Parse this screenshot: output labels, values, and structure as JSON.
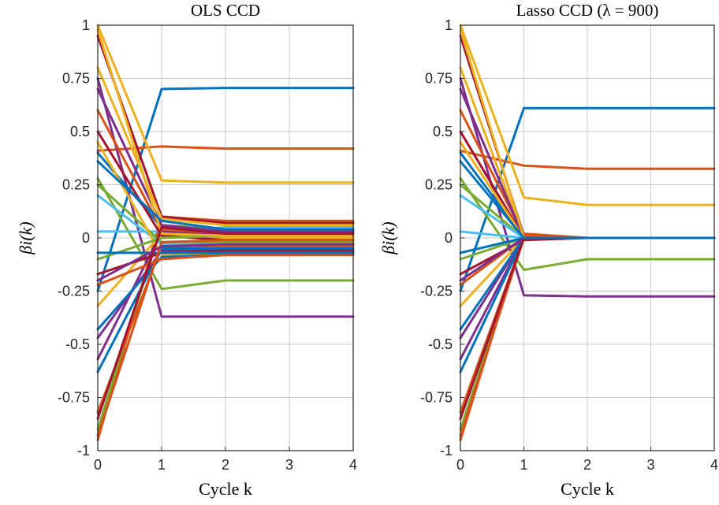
{
  "figure": {
    "background": "#ffffff"
  },
  "chart_data": [
    {
      "type": "line",
      "title": "OLS CCD",
      "xlabel": "Cycle k",
      "ylabel": "βi(k)",
      "xlim": [
        0,
        4
      ],
      "ylim": [
        -1,
        1
      ],
      "xticks": [
        0,
        1,
        2,
        3,
        4
      ],
      "xtick_labels": [
        "0",
        "1",
        "2",
        "3",
        "4"
      ],
      "yticks": [
        -1,
        -0.75,
        -0.5,
        -0.25,
        0,
        0.25,
        0.5,
        0.75,
        1
      ],
      "ytick_labels": [
        "-1",
        "-0.75",
        "-0.5",
        "-0.25",
        "0",
        "0.25",
        "0.5",
        "0.75",
        "1"
      ],
      "grid": true,
      "x": [
        0,
        1,
        2,
        3,
        4
      ],
      "series": [
        {
          "color": "#0072bd",
          "values": [
            -0.25,
            0.7,
            0.705,
            0.705,
            0.705
          ]
        },
        {
          "color": "#d95319",
          "values": [
            0.41,
            0.43,
            0.42,
            0.42,
            0.42
          ]
        },
        {
          "color": "#edb120",
          "values": [
            1.0,
            0.27,
            0.26,
            0.26,
            0.26
          ]
        },
        {
          "color": "#77ac30",
          "values": [
            0.28,
            -0.24,
            -0.2,
            -0.2,
            -0.2
          ]
        },
        {
          "color": "#7e2f8e",
          "values": [
            0.75,
            -0.37,
            -0.37,
            -0.37,
            -0.37
          ]
        },
        {
          "color": "#d95319",
          "values": [
            -0.95,
            0.1,
            0.08,
            0.08,
            0.08
          ]
        },
        {
          "color": "#a2142f",
          "values": [
            0.95,
            0.1,
            0.07,
            0.07,
            0.07
          ]
        },
        {
          "color": "#edb120",
          "values": [
            0.8,
            0.09,
            0.06,
            0.06,
            0.06
          ]
        },
        {
          "color": "#4dbeee",
          "values": [
            0.03,
            0.03,
            0.05,
            0.05,
            0.05
          ]
        },
        {
          "color": "#77ac30",
          "values": [
            -0.9,
            0.06,
            0.04,
            0.04,
            0.04
          ]
        },
        {
          "color": "#0072bd",
          "values": [
            0.4,
            0.05,
            0.03,
            0.03,
            0.03
          ]
        },
        {
          "color": "#d95319",
          "values": [
            0.6,
            0.04,
            0.02,
            0.02,
            0.02
          ]
        },
        {
          "color": "#7e2f8e",
          "values": [
            -0.57,
            0.03,
            0.01,
            0.01,
            0.01
          ]
        },
        {
          "color": "#edb120",
          "values": [
            -0.32,
            0.02,
            0.0,
            0.0,
            0.0
          ]
        },
        {
          "color": "#a2142f",
          "values": [
            0.5,
            0.01,
            -0.01,
            -0.01,
            -0.01
          ]
        },
        {
          "color": "#77ac30",
          "values": [
            0.25,
            -0.02,
            -0.02,
            -0.02,
            -0.02
          ]
        },
        {
          "color": "#4dbeee",
          "values": [
            0.2,
            -0.03,
            -0.03,
            -0.03,
            -0.03
          ]
        },
        {
          "color": "#d95319",
          "values": [
            -0.82,
            -0.04,
            -0.04,
            -0.04,
            -0.04
          ]
        },
        {
          "color": "#0072bd",
          "values": [
            -0.63,
            -0.05,
            -0.05,
            -0.05,
            -0.05
          ]
        },
        {
          "color": "#7e2f8e",
          "values": [
            -0.47,
            -0.06,
            -0.06,
            -0.06,
            -0.06
          ]
        },
        {
          "color": "#a2142f",
          "values": [
            -0.17,
            -0.07,
            -0.06,
            -0.06,
            -0.06
          ]
        },
        {
          "color": "#edb120",
          "values": [
            0.45,
            -0.08,
            -0.07,
            -0.07,
            -0.07
          ]
        },
        {
          "color": "#0072bd",
          "values": [
            -0.43,
            -0.09,
            -0.08,
            -0.08,
            -0.08
          ]
        },
        {
          "color": "#d95319",
          "values": [
            -0.22,
            -0.1,
            -0.08,
            -0.08,
            -0.08
          ]
        },
        {
          "color": "#7e2f8e",
          "values": [
            0.7,
            0.06,
            0.03,
            0.03,
            0.03
          ]
        },
        {
          "color": "#77ac30",
          "values": [
            -0.1,
            0.0,
            0.01,
            0.01,
            0.01
          ]
        },
        {
          "color": "#0072bd",
          "values": [
            -0.07,
            -0.07,
            -0.07,
            -0.07,
            -0.07
          ]
        },
        {
          "color": "#d95319",
          "values": [
            -0.93,
            -0.02,
            -0.01,
            -0.01,
            -0.01
          ]
        },
        {
          "color": "#edb120",
          "values": [
            0.98,
            0.02,
            0.01,
            0.01,
            0.01
          ]
        },
        {
          "color": "#7e2f8e",
          "values": [
            -0.2,
            -0.04,
            -0.03,
            -0.03,
            -0.03
          ]
        },
        {
          "color": "#a2142f",
          "values": [
            -0.85,
            0.05,
            0.02,
            0.02,
            0.02
          ]
        },
        {
          "color": "#0072bd",
          "values": [
            0.36,
            0.08,
            0.04,
            0.04,
            0.04
          ]
        }
      ]
    },
    {
      "type": "line",
      "title": "Lasso CCD (λ = 900)",
      "xlabel": "Cycle k",
      "ylabel": "βi(k)",
      "xlim": [
        0,
        4
      ],
      "ylim": [
        -1,
        1
      ],
      "xticks": [
        0,
        1,
        2,
        3,
        4
      ],
      "xtick_labels": [
        "0",
        "1",
        "2",
        "3",
        "4"
      ],
      "yticks": [
        -1,
        -0.75,
        -0.5,
        -0.25,
        0,
        0.25,
        0.5,
        0.75,
        1
      ],
      "ytick_labels": [
        "-1",
        "-0.75",
        "-0.5",
        "-0.25",
        "0",
        "0.25",
        "0.5",
        "0.75",
        "1"
      ],
      "grid": true,
      "x": [
        0,
        1,
        2,
        3,
        4
      ],
      "series": [
        {
          "color": "#0072bd",
          "values": [
            -0.25,
            0.61,
            0.61,
            0.61,
            0.61
          ]
        },
        {
          "color": "#d95319",
          "values": [
            0.41,
            0.34,
            0.325,
            0.325,
            0.325
          ]
        },
        {
          "color": "#edb120",
          "values": [
            1.0,
            0.19,
            0.155,
            0.155,
            0.155
          ]
        },
        {
          "color": "#77ac30",
          "values": [
            0.28,
            -0.15,
            -0.1,
            -0.1,
            -0.1
          ]
        },
        {
          "color": "#7e2f8e",
          "values": [
            0.75,
            -0.27,
            -0.275,
            -0.275,
            -0.275
          ]
        },
        {
          "color": "#d95319",
          "values": [
            -0.95,
            0.02,
            0.0,
            0.0,
            0.0
          ]
        },
        {
          "color": "#a2142f",
          "values": [
            0.95,
            0.01,
            0.0,
            0.0,
            0.0
          ]
        },
        {
          "color": "#edb120",
          "values": [
            0.8,
            0.0,
            0.0,
            0.0,
            0.0
          ]
        },
        {
          "color": "#4dbeee",
          "values": [
            0.03,
            0.0,
            0.0,
            0.0,
            0.0
          ]
        },
        {
          "color": "#77ac30",
          "values": [
            -0.9,
            0.0,
            0.0,
            0.0,
            0.0
          ]
        },
        {
          "color": "#0072bd",
          "values": [
            0.4,
            0.0,
            0.0,
            0.0,
            0.0
          ]
        },
        {
          "color": "#d95319",
          "values": [
            0.6,
            0.01,
            0.0,
            0.0,
            0.0
          ]
        },
        {
          "color": "#7e2f8e",
          "values": [
            -0.57,
            0.0,
            0.0,
            0.0,
            0.0
          ]
        },
        {
          "color": "#edb120",
          "values": [
            -0.32,
            0.0,
            0.0,
            0.0,
            0.0
          ]
        },
        {
          "color": "#a2142f",
          "values": [
            0.5,
            0.0,
            0.0,
            0.0,
            0.0
          ]
        },
        {
          "color": "#77ac30",
          "values": [
            0.25,
            0.0,
            0.0,
            0.0,
            0.0
          ]
        },
        {
          "color": "#4dbeee",
          "values": [
            0.2,
            0.0,
            0.0,
            0.0,
            0.0
          ]
        },
        {
          "color": "#d95319",
          "values": [
            -0.82,
            0.0,
            0.0,
            0.0,
            0.0
          ]
        },
        {
          "color": "#0072bd",
          "values": [
            -0.63,
            0.0,
            0.0,
            0.0,
            0.0
          ]
        },
        {
          "color": "#7e2f8e",
          "values": [
            -0.47,
            0.0,
            0.0,
            0.0,
            0.0
          ]
        },
        {
          "color": "#a2142f",
          "values": [
            -0.17,
            -0.01,
            0.0,
            0.0,
            0.0
          ]
        },
        {
          "color": "#edb120",
          "values": [
            0.45,
            0.0,
            0.0,
            0.0,
            0.0
          ]
        },
        {
          "color": "#0072bd",
          "values": [
            -0.43,
            0.0,
            0.0,
            0.0,
            0.0
          ]
        },
        {
          "color": "#d95319",
          "values": [
            -0.22,
            0.0,
            0.0,
            0.0,
            0.0
          ]
        },
        {
          "color": "#7e2f8e",
          "values": [
            0.7,
            0.0,
            0.0,
            0.0,
            0.0
          ]
        },
        {
          "color": "#77ac30",
          "values": [
            -0.1,
            0.0,
            0.0,
            0.0,
            0.0
          ]
        },
        {
          "color": "#0072bd",
          "values": [
            -0.07,
            0.0,
            0.0,
            0.0,
            0.0
          ]
        },
        {
          "color": "#d95319",
          "values": [
            -0.93,
            0.0,
            0.0,
            0.0,
            0.0
          ]
        },
        {
          "color": "#edb120",
          "values": [
            0.98,
            0.0,
            0.0,
            0.0,
            0.0
          ]
        },
        {
          "color": "#7e2f8e",
          "values": [
            -0.2,
            0.0,
            0.0,
            0.0,
            0.0
          ]
        },
        {
          "color": "#a2142f",
          "values": [
            -0.85,
            0.0,
            0.0,
            0.0,
            0.0
          ]
        },
        {
          "color": "#0072bd",
          "values": [
            0.36,
            0.0,
            0.0,
            0.0,
            0.0
          ]
        }
      ]
    }
  ]
}
